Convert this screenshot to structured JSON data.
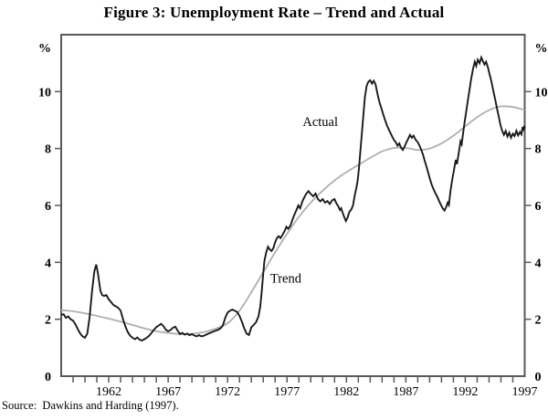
{
  "figure": {
    "title": "Figure 3: Unemployment Rate – Trend and Actual",
    "source": "Source:  Dawkins and Harding (1997)."
  },
  "chart_data": {
    "type": "line",
    "title": "Figure 3: Unemployment Rate – Trend and Actual",
    "xlabel": "",
    "ylabel_left": "%",
    "ylabel_right": "%",
    "xlim": [
      1958,
      1997
    ],
    "ylim": [
      0,
      12
    ],
    "grid": false,
    "x_minor_tick_interval": 1,
    "x_tick_labels": [
      "1962",
      "1967",
      "1972",
      "1977",
      "1982",
      "1987",
      "1992",
      "1997"
    ],
    "x_tick_label_years": [
      1962,
      1967,
      1972,
      1977,
      1982,
      1987,
      1992,
      1997
    ],
    "y_tick_values": [
      0,
      2,
      4,
      6,
      8,
      10
    ],
    "y_tick_labels": [
      "0",
      "2",
      "4",
      "6",
      "8",
      "10"
    ],
    "colors": {
      "actual": "#1a1a1a",
      "trend": "#b0b0b0",
      "axis": "#595959"
    },
    "annotations": [
      {
        "text": "Actual",
        "year": 1979.8,
        "value": 8.95
      },
      {
        "text": "Trend",
        "year": 1976.9,
        "value": 3.45
      }
    ],
    "series": [
      {
        "name": "Actual",
        "style": "jagged",
        "points": [
          [
            1958.0,
            2.15
          ],
          [
            1958.2,
            2.18
          ],
          [
            1958.4,
            2.05
          ],
          [
            1958.6,
            2.1
          ],
          [
            1958.8,
            2.0
          ],
          [
            1959.0,
            1.95
          ],
          [
            1959.2,
            1.82
          ],
          [
            1959.4,
            1.65
          ],
          [
            1959.6,
            1.5
          ],
          [
            1959.8,
            1.4
          ],
          [
            1960.0,
            1.35
          ],
          [
            1960.2,
            1.5
          ],
          [
            1960.4,
            2.1
          ],
          [
            1960.6,
            3.0
          ],
          [
            1960.8,
            3.7
          ],
          [
            1960.95,
            3.92
          ],
          [
            1961.1,
            3.6
          ],
          [
            1961.3,
            3.0
          ],
          [
            1961.45,
            2.85
          ],
          [
            1961.6,
            2.82
          ],
          [
            1961.8,
            2.85
          ],
          [
            1962.0,
            2.7
          ],
          [
            1962.2,
            2.6
          ],
          [
            1962.4,
            2.5
          ],
          [
            1962.6,
            2.45
          ],
          [
            1962.8,
            2.4
          ],
          [
            1963.0,
            2.3
          ],
          [
            1963.2,
            2.0
          ],
          [
            1963.4,
            1.75
          ],
          [
            1963.6,
            1.55
          ],
          [
            1963.8,
            1.42
          ],
          [
            1964.0,
            1.35
          ],
          [
            1964.2,
            1.3
          ],
          [
            1964.4,
            1.36
          ],
          [
            1964.6,
            1.28
          ],
          [
            1964.8,
            1.25
          ],
          [
            1965.0,
            1.3
          ],
          [
            1965.2,
            1.35
          ],
          [
            1965.4,
            1.42
          ],
          [
            1965.6,
            1.52
          ],
          [
            1965.8,
            1.63
          ],
          [
            1966.0,
            1.72
          ],
          [
            1966.2,
            1.78
          ],
          [
            1966.4,
            1.84
          ],
          [
            1966.6,
            1.76
          ],
          [
            1966.8,
            1.63
          ],
          [
            1967.0,
            1.58
          ],
          [
            1967.2,
            1.62
          ],
          [
            1967.4,
            1.7
          ],
          [
            1967.6,
            1.74
          ],
          [
            1967.8,
            1.6
          ],
          [
            1968.0,
            1.48
          ],
          [
            1968.2,
            1.52
          ],
          [
            1968.4,
            1.46
          ],
          [
            1968.6,
            1.5
          ],
          [
            1968.8,
            1.44
          ],
          [
            1969.0,
            1.48
          ],
          [
            1969.2,
            1.43
          ],
          [
            1969.4,
            1.4
          ],
          [
            1969.6,
            1.44
          ],
          [
            1969.8,
            1.4
          ],
          [
            1970.0,
            1.42
          ],
          [
            1970.2,
            1.46
          ],
          [
            1970.4,
            1.5
          ],
          [
            1970.6,
            1.53
          ],
          [
            1970.8,
            1.57
          ],
          [
            1971.0,
            1.6
          ],
          [
            1971.2,
            1.63
          ],
          [
            1971.4,
            1.68
          ],
          [
            1971.6,
            1.78
          ],
          [
            1971.8,
            2.05
          ],
          [
            1972.0,
            2.24
          ],
          [
            1972.2,
            2.3
          ],
          [
            1972.4,
            2.34
          ],
          [
            1972.6,
            2.3
          ],
          [
            1972.8,
            2.26
          ],
          [
            1973.0,
            2.12
          ],
          [
            1973.2,
            1.92
          ],
          [
            1973.4,
            1.68
          ],
          [
            1973.6,
            1.5
          ],
          [
            1973.8,
            1.45
          ],
          [
            1974.0,
            1.72
          ],
          [
            1974.2,
            1.8
          ],
          [
            1974.4,
            1.9
          ],
          [
            1974.6,
            2.1
          ],
          [
            1974.75,
            2.45
          ],
          [
            1974.9,
            3.1
          ],
          [
            1975.0,
            3.6
          ],
          [
            1975.1,
            4.05
          ],
          [
            1975.25,
            4.35
          ],
          [
            1975.4,
            4.55
          ],
          [
            1975.55,
            4.45
          ],
          [
            1975.7,
            4.4
          ],
          [
            1975.85,
            4.5
          ],
          [
            1976.0,
            4.7
          ],
          [
            1976.15,
            4.85
          ],
          [
            1976.3,
            4.92
          ],
          [
            1976.45,
            4.85
          ],
          [
            1976.6,
            4.95
          ],
          [
            1976.8,
            5.1
          ],
          [
            1976.95,
            5.25
          ],
          [
            1977.1,
            5.18
          ],
          [
            1977.3,
            5.3
          ],
          [
            1977.5,
            5.55
          ],
          [
            1977.65,
            5.7
          ],
          [
            1977.8,
            5.85
          ],
          [
            1977.95,
            6.0
          ],
          [
            1978.1,
            5.9
          ],
          [
            1978.3,
            6.15
          ],
          [
            1978.45,
            6.28
          ],
          [
            1978.6,
            6.4
          ],
          [
            1978.8,
            6.5
          ],
          [
            1979.0,
            6.4
          ],
          [
            1979.2,
            6.32
          ],
          [
            1979.4,
            6.42
          ],
          [
            1979.6,
            6.22
          ],
          [
            1979.8,
            6.14
          ],
          [
            1980.0,
            6.22
          ],
          [
            1980.2,
            6.1
          ],
          [
            1980.4,
            6.15
          ],
          [
            1980.6,
            6.05
          ],
          [
            1980.8,
            6.18
          ],
          [
            1981.0,
            6.22
          ],
          [
            1981.15,
            6.08
          ],
          [
            1981.3,
            5.98
          ],
          [
            1981.45,
            5.84
          ],
          [
            1981.55,
            5.9
          ],
          [
            1981.7,
            5.72
          ],
          [
            1981.85,
            5.55
          ],
          [
            1981.95,
            5.45
          ],
          [
            1982.1,
            5.58
          ],
          [
            1982.25,
            5.78
          ],
          [
            1982.4,
            5.85
          ],
          [
            1982.55,
            6.0
          ],
          [
            1982.7,
            6.35
          ],
          [
            1982.85,
            6.65
          ],
          [
            1982.95,
            6.9
          ],
          [
            1983.05,
            7.3
          ],
          [
            1983.15,
            7.8
          ],
          [
            1983.25,
            8.3
          ],
          [
            1983.35,
            8.8
          ],
          [
            1983.45,
            9.3
          ],
          [
            1983.55,
            9.8
          ],
          [
            1983.7,
            10.2
          ],
          [
            1983.85,
            10.35
          ],
          [
            1984.0,
            10.4
          ],
          [
            1984.15,
            10.28
          ],
          [
            1984.3,
            10.38
          ],
          [
            1984.45,
            10.25
          ],
          [
            1984.55,
            10.05
          ],
          [
            1984.65,
            9.85
          ],
          [
            1984.8,
            9.6
          ],
          [
            1984.95,
            9.4
          ],
          [
            1985.1,
            9.2
          ],
          [
            1985.25,
            9.0
          ],
          [
            1985.4,
            8.82
          ],
          [
            1985.55,
            8.68
          ],
          [
            1985.7,
            8.55
          ],
          [
            1985.85,
            8.42
          ],
          [
            1986.0,
            8.3
          ],
          [
            1986.15,
            8.22
          ],
          [
            1986.3,
            8.1
          ],
          [
            1986.45,
            8.18
          ],
          [
            1986.6,
            8.02
          ],
          [
            1986.75,
            7.95
          ],
          [
            1986.9,
            8.08
          ],
          [
            1987.05,
            8.22
          ],
          [
            1987.2,
            8.35
          ],
          [
            1987.35,
            8.48
          ],
          [
            1987.5,
            8.38
          ],
          [
            1987.65,
            8.45
          ],
          [
            1987.8,
            8.32
          ],
          [
            1988.0,
            8.22
          ],
          [
            1988.15,
            8.1
          ],
          [
            1988.3,
            7.95
          ],
          [
            1988.45,
            7.78
          ],
          [
            1988.6,
            7.55
          ],
          [
            1988.75,
            7.35
          ],
          [
            1988.9,
            7.12
          ],
          [
            1989.05,
            6.9
          ],
          [
            1989.2,
            6.7
          ],
          [
            1989.35,
            6.55
          ],
          [
            1989.5,
            6.42
          ],
          [
            1989.65,
            6.3
          ],
          [
            1989.8,
            6.15
          ],
          [
            1989.95,
            6.02
          ],
          [
            1990.1,
            5.9
          ],
          [
            1990.25,
            5.82
          ],
          [
            1990.4,
            5.95
          ],
          [
            1990.52,
            6.1
          ],
          [
            1990.62,
            6.02
          ],
          [
            1990.75,
            6.5
          ],
          [
            1990.9,
            6.9
          ],
          [
            1991.05,
            7.25
          ],
          [
            1991.2,
            7.6
          ],
          [
            1991.3,
            7.45
          ],
          [
            1991.45,
            7.85
          ],
          [
            1991.6,
            8.25
          ],
          [
            1991.7,
            8.15
          ],
          [
            1991.82,
            8.55
          ],
          [
            1991.95,
            8.95
          ],
          [
            1992.1,
            9.35
          ],
          [
            1992.22,
            9.7
          ],
          [
            1992.35,
            10.05
          ],
          [
            1992.5,
            10.45
          ],
          [
            1992.65,
            10.8
          ],
          [
            1992.8,
            11.05
          ],
          [
            1992.92,
            10.9
          ],
          [
            1993.05,
            11.12
          ],
          [
            1993.2,
            11.0
          ],
          [
            1993.35,
            11.2
          ],
          [
            1993.5,
            11.05
          ],
          [
            1993.62,
            10.95
          ],
          [
            1993.75,
            11.05
          ],
          [
            1993.9,
            10.85
          ],
          [
            1994.05,
            10.6
          ],
          [
            1994.2,
            10.35
          ],
          [
            1994.35,
            10.05
          ],
          [
            1994.5,
            9.75
          ],
          [
            1994.65,
            9.45
          ],
          [
            1994.8,
            9.15
          ],
          [
            1994.95,
            8.85
          ],
          [
            1995.1,
            8.62
          ],
          [
            1995.25,
            8.48
          ],
          [
            1995.4,
            8.62
          ],
          [
            1995.55,
            8.42
          ],
          [
            1995.7,
            8.56
          ],
          [
            1995.85,
            8.38
          ],
          [
            1996.0,
            8.52
          ],
          [
            1996.15,
            8.44
          ],
          [
            1996.3,
            8.62
          ],
          [
            1996.45,
            8.46
          ],
          [
            1996.6,
            8.58
          ],
          [
            1996.72,
            8.5
          ],
          [
            1996.82,
            8.76
          ],
          [
            1996.9,
            8.62
          ],
          [
            1996.96,
            8.8
          ],
          [
            1997.0,
            8.7
          ]
        ]
      },
      {
        "name": "Trend",
        "style": "smooth",
        "points": [
          [
            1958.0,
            2.32
          ],
          [
            1959.0,
            2.28
          ],
          [
            1960.0,
            2.21
          ],
          [
            1961.0,
            2.12
          ],
          [
            1962.0,
            2.02
          ],
          [
            1963.0,
            1.92
          ],
          [
            1964.0,
            1.8
          ],
          [
            1965.0,
            1.68
          ],
          [
            1966.0,
            1.58
          ],
          [
            1967.0,
            1.52
          ],
          [
            1968.0,
            1.48
          ],
          [
            1969.0,
            1.49
          ],
          [
            1970.0,
            1.55
          ],
          [
            1971.0,
            1.67
          ],
          [
            1972.0,
            1.86
          ],
          [
            1973.0,
            2.3
          ],
          [
            1974.0,
            2.95
          ],
          [
            1975.0,
            3.65
          ],
          [
            1976.0,
            4.35
          ],
          [
            1977.0,
            5.0
          ],
          [
            1978.0,
            5.6
          ],
          [
            1979.0,
            6.1
          ],
          [
            1980.0,
            6.52
          ],
          [
            1981.0,
            6.88
          ],
          [
            1982.0,
            7.17
          ],
          [
            1983.0,
            7.42
          ],
          [
            1984.0,
            7.67
          ],
          [
            1985.0,
            7.9
          ],
          [
            1986.0,
            8.02
          ],
          [
            1987.0,
            8.02
          ],
          [
            1988.0,
            7.95
          ],
          [
            1989.0,
            8.0
          ],
          [
            1990.0,
            8.18
          ],
          [
            1991.0,
            8.45
          ],
          [
            1992.0,
            8.78
          ],
          [
            1993.0,
            9.1
          ],
          [
            1994.0,
            9.35
          ],
          [
            1995.0,
            9.48
          ],
          [
            1996.0,
            9.46
          ],
          [
            1997.0,
            9.35
          ]
        ]
      }
    ]
  }
}
